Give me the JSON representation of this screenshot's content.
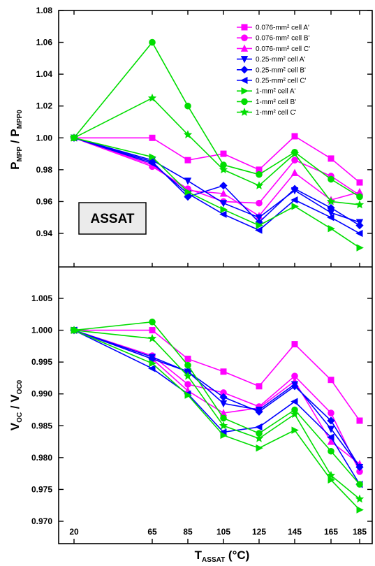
{
  "chart_data": [
    {
      "type": "line",
      "panel": "top",
      "ylabel_main": "P",
      "ylabel_sub1": "MPP",
      "ylabel_sep": " / P",
      "ylabel_sub2": "MPP0",
      "ylim": [
        0.92,
        1.08
      ],
      "yticks": [
        "0.94",
        "0.96",
        "0.98",
        "1.00",
        "1.02",
        "1.04",
        "1.06",
        "1.08"
      ],
      "annotation": "ASSAT",
      "legend_position": "top-right",
      "x": [
        20,
        65,
        85,
        105,
        125,
        145,
        165,
        185
      ],
      "series": [
        {
          "name": "0.076-mm² cell A'",
          "color": "#ff00ff",
          "marker": "square",
          "values": [
            1.0,
            1.0,
            0.986,
            0.99,
            0.98,
            1.001,
            0.987,
            0.972
          ]
        },
        {
          "name": "0.076-mm² cell B'",
          "color": "#ff00ff",
          "marker": "circle",
          "values": [
            1.0,
            0.982,
            0.968,
            0.96,
            0.959,
            0.986,
            0.976,
            0.964
          ]
        },
        {
          "name": "0.076-mm² cell C'",
          "color": "#ff00ff",
          "marker": "triangle",
          "values": [
            1.0,
            0.983,
            0.967,
            0.965,
            0.951,
            0.978,
            0.961,
            0.966
          ]
        },
        {
          "name": "0.25-mm² cell A'",
          "color": "#0000ff",
          "marker": "tri-down",
          "values": [
            1.0,
            0.986,
            0.973,
            0.959,
            0.95,
            0.967,
            0.953,
            0.947
          ]
        },
        {
          "name": "0.25-mm² cell B'",
          "color": "#0000ff",
          "marker": "diamond",
          "values": [
            1.0,
            0.985,
            0.963,
            0.97,
            0.947,
            0.968,
            0.956,
            0.945
          ]
        },
        {
          "name": "0.25-mm² cell C'",
          "color": "#0000ff",
          "marker": "tri-left",
          "values": [
            1.0,
            0.984,
            0.965,
            0.952,
            0.942,
            0.961,
            0.95,
            0.94
          ]
        },
        {
          "name": "1-mm² cell A'",
          "color": "#00dd00",
          "marker": "tri-right",
          "values": [
            1.0,
            0.988,
            0.966,
            0.955,
            0.945,
            0.957,
            0.943,
            0.931
          ]
        },
        {
          "name": "1-mm² cell B'",
          "color": "#00dd00",
          "marker": "circle",
          "values": [
            1.0,
            1.06,
            1.02,
            0.983,
            0.977,
            0.991,
            0.974,
            0.963
          ]
        },
        {
          "name": "1-mm² cell C'",
          "color": "#00dd00",
          "marker": "star",
          "values": [
            1.0,
            1.025,
            1.002,
            0.98,
            0.97,
            0.99,
            0.96,
            0.958
          ]
        }
      ]
    },
    {
      "type": "line",
      "panel": "bottom",
      "ylabel_main": "V",
      "ylabel_sub1": "OC",
      "ylabel_sep": " / V",
      "ylabel_sub2": "OC0",
      "ylim": [
        0.9695,
        1.01
      ],
      "yticks": [
        "0.970",
        "0.975",
        "0.980",
        "0.985",
        "0.990",
        "0.995",
        "1.000",
        "1.005"
      ],
      "xlabel_main": "T",
      "xlabel_sub": "ASSAT",
      "xlabel_tail": " (°C)",
      "xticks": [
        "20",
        "65",
        "85",
        "105",
        "125",
        "145",
        "165",
        "185"
      ],
      "x": [
        20,
        65,
        85,
        105,
        125,
        145,
        165,
        185
      ],
      "series": [
        {
          "name": "0.076-mm² cell A'",
          "values": [
            1.0,
            1.0,
            0.9955,
            0.9935,
            0.9912,
            0.9978,
            0.9922,
            0.9858
          ]
        },
        {
          "name": "0.076-mm² cell B'",
          "values": [
            1.0,
            0.996,
            0.9915,
            0.9902,
            0.988,
            0.9928,
            0.987,
            0.9778
          ]
        },
        {
          "name": "0.076-mm² cell C'",
          "values": [
            1.0,
            0.9955,
            0.9905,
            0.987,
            0.9878,
            0.992,
            0.9825,
            0.979
          ]
        },
        {
          "name": "0.25-mm² cell A'",
          "values": [
            1.0,
            0.9958,
            0.9935,
            0.9885,
            0.9875,
            0.9915,
            0.9845,
            0.9785
          ]
        },
        {
          "name": "0.25-mm² cell B'",
          "values": [
            1.0,
            0.9955,
            0.9935,
            0.9895,
            0.9872,
            0.9912,
            0.9858,
            0.9785
          ]
        },
        {
          "name": "0.25-mm² cell C'",
          "values": [
            1.0,
            0.994,
            0.99,
            0.984,
            0.9848,
            0.9888,
            0.9832,
            0.9758
          ]
        },
        {
          "name": "1-mm² cell A'",
          "values": [
            1.0,
            0.9948,
            0.9898,
            0.9835,
            0.9815,
            0.9843,
            0.9765,
            0.9718
          ]
        },
        {
          "name": "1-mm² cell B'",
          "values": [
            1.0,
            1.0013,
            0.9945,
            0.9862,
            0.9838,
            0.9875,
            0.981,
            0.9758
          ]
        },
        {
          "name": "1-mm² cell C'",
          "values": [
            1.0,
            0.9987,
            0.9928,
            0.985,
            0.983,
            0.9868,
            0.9772,
            0.9735
          ]
        }
      ]
    }
  ]
}
